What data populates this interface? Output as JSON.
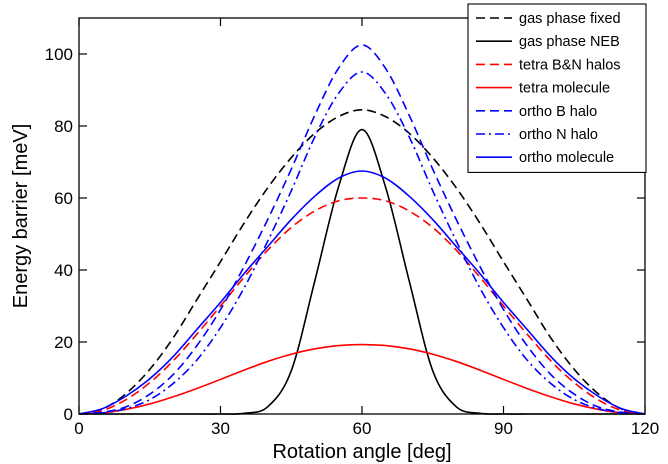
{
  "chart_data": {
    "type": "line",
    "title": "",
    "xlabel": "Rotation angle  [deg]",
    "ylabel": "Energy barrier  [meV]",
    "xlim": [
      0,
      120
    ],
    "ylim": [
      0,
      110
    ],
    "xticks": [
      0,
      30,
      60,
      90,
      120
    ],
    "yticks": [
      0,
      20,
      40,
      60,
      80,
      100
    ],
    "grid": false,
    "legend_position": "top-right",
    "x": [
      0,
      5,
      10,
      15,
      20,
      25,
      30,
      35,
      40,
      45,
      50,
      55,
      60,
      65,
      70,
      75,
      80,
      85,
      90,
      95,
      100,
      105,
      110,
      115,
      120
    ],
    "series": [
      {
        "name": "gas phase fixed",
        "color": "#000000",
        "dash": "dashed",
        "values": [
          0,
          1.4,
          5.7,
          12.4,
          21.2,
          31.8,
          42.3,
          53.0,
          62.8,
          71.2,
          78.0,
          82.6,
          84.5,
          82.6,
          78.0,
          71.2,
          62.8,
          53.0,
          42.3,
          31.8,
          21.2,
          12.4,
          5.7,
          1.4,
          0
        ]
      },
      {
        "name": "gas phase NEB",
        "color": "#000000",
        "dash": "solid",
        "values": [
          0,
          0,
          0,
          0,
          0,
          0,
          0,
          0.2,
          2,
          12,
          37,
          63,
          79,
          63,
          37,
          12,
          2,
          0.2,
          0,
          0,
          0,
          0,
          0,
          0,
          0
        ]
      },
      {
        "name": "tetra B&N halos",
        "color": "#ff0000",
        "dash": "dashed",
        "values": [
          0,
          1.0,
          4.0,
          8.7,
          14.8,
          22.2,
          30.0,
          38.0,
          45.5,
          51.8,
          56.4,
          59.2,
          60.0,
          59.2,
          56.4,
          51.8,
          45.5,
          38.0,
          30.0,
          22.2,
          14.8,
          8.7,
          4.0,
          1.0,
          0
        ]
      },
      {
        "name": "tetra molecule",
        "color": "#ff0000",
        "dash": "solid",
        "values": [
          0,
          0.3,
          1.3,
          2.8,
          4.8,
          7.1,
          9.6,
          12.2,
          14.6,
          16.6,
          18.1,
          19.0,
          19.3,
          19.0,
          18.1,
          16.6,
          14.6,
          12.2,
          9.6,
          7.1,
          4.8,
          2.8,
          1.3,
          0.3,
          0
        ]
      },
      {
        "name": "ortho B halo",
        "color": "#0000ff",
        "dash": "dashed",
        "values": [
          0,
          0.5,
          2.0,
          5.5,
          11.0,
          19.0,
          29.0,
          41.0,
          54.0,
          68.0,
          83.0,
          96.0,
          102.5,
          96.0,
          83.0,
          68.0,
          54.0,
          41.0,
          29.0,
          19.0,
          11.0,
          5.5,
          2.0,
          0.5,
          0
        ]
      },
      {
        "name": "ortho N halo",
        "color": "#0000ff",
        "dash": "dashdot",
        "values": [
          0,
          0.3,
          1.5,
          4.0,
          8.5,
          15.0,
          24.0,
          35.0,
          48.0,
          62.0,
          77.0,
          89.0,
          95.0,
          89.0,
          77.0,
          62.0,
          48.0,
          35.0,
          24.0,
          15.0,
          8.5,
          4.0,
          1.5,
          0.3,
          0
        ]
      },
      {
        "name": "ortho molecule",
        "color": "#0000ff",
        "dash": "solid",
        "values": [
          0,
          1.5,
          5.0,
          9.8,
          16.0,
          23.5,
          31.0,
          39.0,
          46.5,
          54.0,
          60.5,
          65.5,
          67.5,
          65.5,
          60.5,
          54.0,
          46.5,
          39.0,
          31.0,
          23.5,
          16.0,
          9.8,
          5.0,
          1.5,
          0
        ]
      }
    ]
  }
}
